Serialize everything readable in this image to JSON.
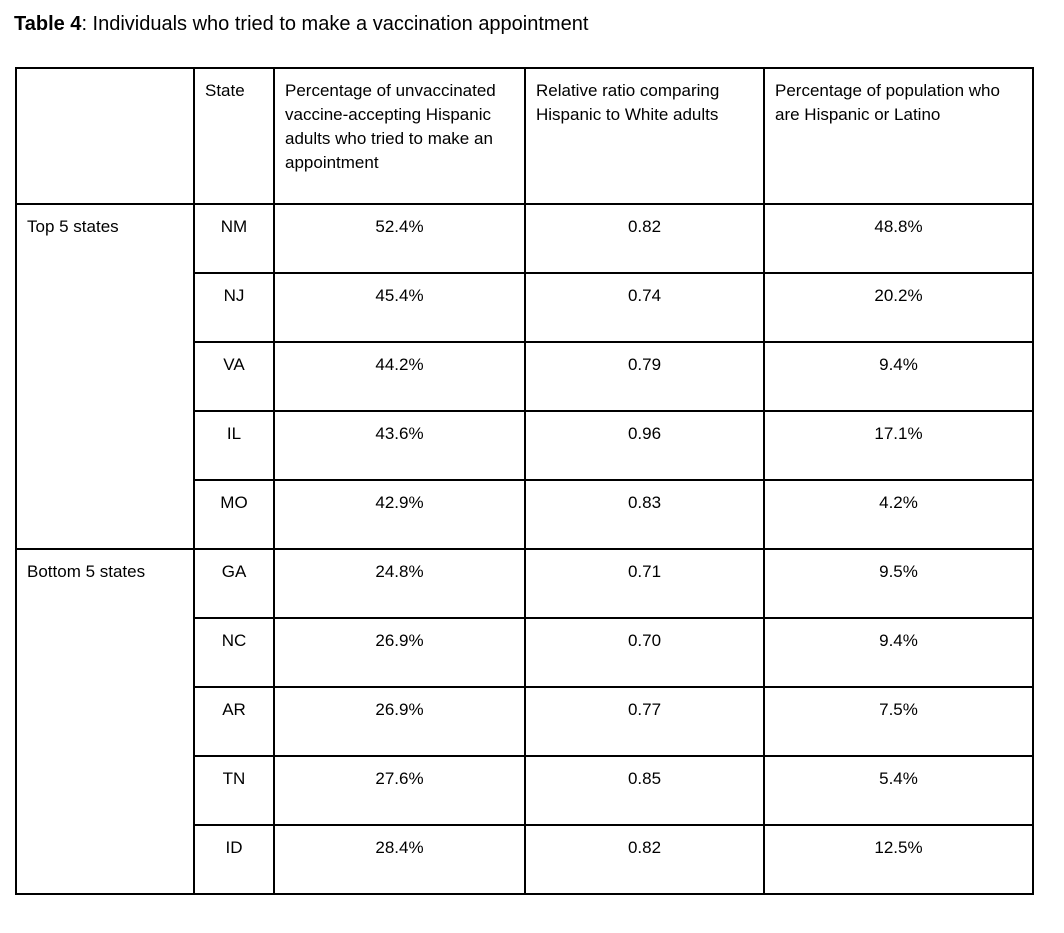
{
  "caption": {
    "label": "Table 4",
    "text": ": Individuals who tried to make a vaccination appointment"
  },
  "table": {
    "headers": {
      "group": "",
      "state": "State",
      "pct_tried": "Percentage of unvaccinated vaccine-accepting Hispanic adults who tried to make an appointment",
      "ratio": "Relative ratio comparing Hispanic to White adults",
      "pct_pop": "Percentage of population who are Hispanic or Latino"
    },
    "groups": [
      {
        "label": "Top 5 states",
        "rows": [
          {
            "state": "NM",
            "pct_tried": "52.4%",
            "ratio": "0.82",
            "pct_pop": "48.8%"
          },
          {
            "state": "NJ",
            "pct_tried": "45.4%",
            "ratio": "0.74",
            "pct_pop": "20.2%"
          },
          {
            "state": "VA",
            "pct_tried": "44.2%",
            "ratio": "0.79",
            "pct_pop": "9.4%"
          },
          {
            "state": "IL",
            "pct_tried": "43.6%",
            "ratio": "0.96",
            "pct_pop": "17.1%"
          },
          {
            "state": "MO",
            "pct_tried": "42.9%",
            "ratio": "0.83",
            "pct_pop": "4.2%"
          }
        ]
      },
      {
        "label": "Bottom 5 states",
        "rows": [
          {
            "state": "GA",
            "pct_tried": "24.8%",
            "ratio": "0.71",
            "pct_pop": "9.5%"
          },
          {
            "state": "NC",
            "pct_tried": "26.9%",
            "ratio": "0.70",
            "pct_pop": "9.4%"
          },
          {
            "state": "AR",
            "pct_tried": "26.9%",
            "ratio": "0.77",
            "pct_pop": "7.5%"
          },
          {
            "state": "TN",
            "pct_tried": "27.6%",
            "ratio": "0.85",
            "pct_pop": "5.4%"
          },
          {
            "state": "ID",
            "pct_tried": "28.4%",
            "ratio": "0.82",
            "pct_pop": "12.5%"
          }
        ]
      }
    ]
  },
  "colors": {
    "border": "#000000",
    "text": "#000000",
    "background": "#ffffff"
  }
}
